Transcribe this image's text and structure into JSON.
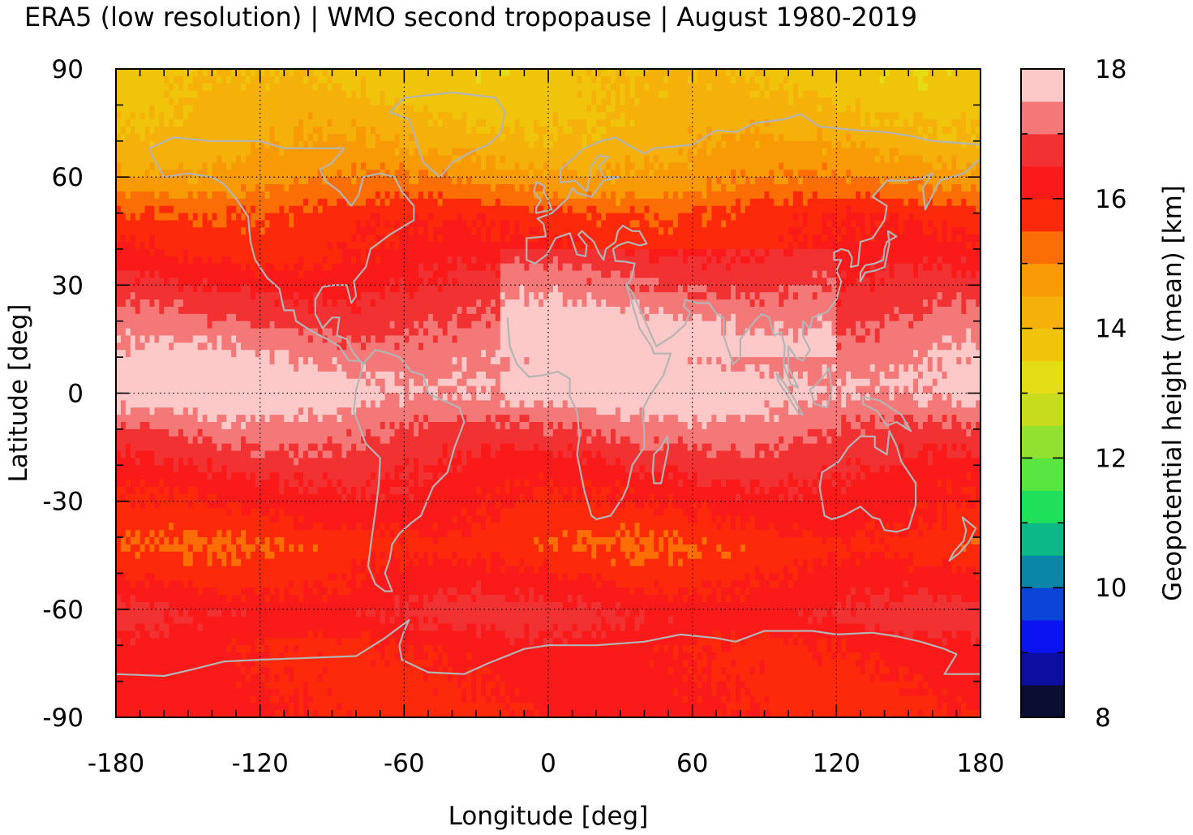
{
  "chart_data": {
    "type": "heatmap",
    "title": "ERA5 (low resolution) | WMO second tropopause | August 1980-2019",
    "xlabel": "Longitude [deg]",
    "ylabel": "Latitude [deg]",
    "colorbar_label": "Geopotential height (mean) [km]",
    "xlim": [
      -180,
      180
    ],
    "ylim": [
      -90,
      90
    ],
    "xticks": [
      "-180",
      "-120",
      "-60",
      "0",
      "60",
      "120",
      "180"
    ],
    "yticks": [
      "-90",
      "-60",
      "-30",
      "0",
      "30",
      "60",
      "90"
    ],
    "zlim": [
      8,
      18
    ],
    "zticks": [
      "8",
      "10",
      "12",
      "14",
      "16",
      "18"
    ],
    "grid": true,
    "colormap": [
      "#0b0d33",
      "#0b0ea0",
      "#0a14f0",
      "#0a44d8",
      "#0a86a8",
      "#0bb886",
      "#1ee05a",
      "#5ae640",
      "#92e030",
      "#c8dc1e",
      "#e4dc14",
      "#f0c40a",
      "#f5b00a",
      "#f79a05",
      "#fa6e05",
      "#fc2a0a",
      "#fa1a1a",
      "#f23232",
      "#f57878",
      "#fcc8c8"
    ],
    "zonal_mean_profile": [
      {
        "lat": 90,
        "z": 13.8
      },
      {
        "lat": 80,
        "z": 14.0
      },
      {
        "lat": 70,
        "z": 14.3
      },
      {
        "lat": 60,
        "z": 14.8
      },
      {
        "lat": 55,
        "z": 15.2
      },
      {
        "lat": 50,
        "z": 15.7
      },
      {
        "lat": 40,
        "z": 16.0
      },
      {
        "lat": 30,
        "z": 16.5
      },
      {
        "lat": 20,
        "z": 17.0
      },
      {
        "lat": 10,
        "z": 17.5
      },
      {
        "lat": 0,
        "z": 17.8
      },
      {
        "lat": -8,
        "z": 17.2
      },
      {
        "lat": -15,
        "z": 16.8
      },
      {
        "lat": -25,
        "z": 16.3
      },
      {
        "lat": -35,
        "z": 16.0
      },
      {
        "lat": -42,
        "z": 15.6
      },
      {
        "lat": -55,
        "z": 16.2
      },
      {
        "lat": -62,
        "z": 16.6
      },
      {
        "lat": -70,
        "z": 16.1
      },
      {
        "lat": -90,
        "z": 16.0
      }
    ]
  }
}
